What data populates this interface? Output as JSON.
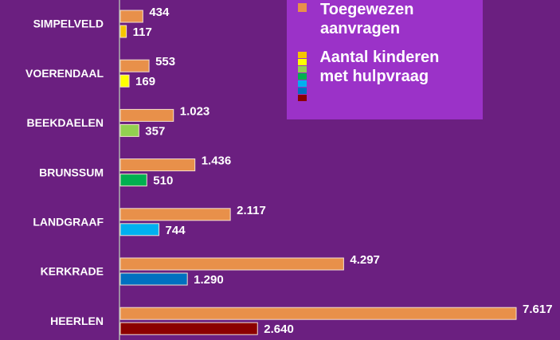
{
  "chart_data": {
    "type": "bar",
    "orientation": "horizontal",
    "categories": [
      "SIMPELVELD",
      "VOERENDAAL",
      "BEEKDAELEN",
      "BRUNSSUM",
      "LANDGRAAF",
      "KERKRADE",
      "HEERLEN"
    ],
    "series": [
      {
        "name": "Toegewezen aanvragen",
        "color": "#e8904a",
        "values": [
          434,
          553,
          1023,
          1436,
          2117,
          4297,
          7617
        ],
        "value_labels": [
          "434",
          "553",
          "1.023",
          "1.436",
          "2.117",
          "4.297",
          "7.617"
        ]
      },
      {
        "name": "Aantal kinderen met hulpvraag",
        "colors": [
          "#f5c400",
          "#ffff00",
          "#92d050",
          "#00b050",
          "#00b0f0",
          "#0070c0",
          "#8b0000"
        ],
        "values": [
          117,
          169,
          357,
          510,
          744,
          1290,
          2640
        ],
        "value_labels": [
          "117",
          "169",
          "357",
          "510",
          "744",
          "1.290",
          "2.640"
        ]
      }
    ]
  }
}
